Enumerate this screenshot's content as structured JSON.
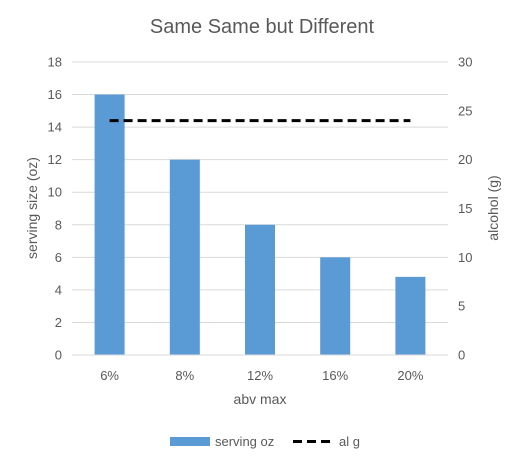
{
  "chart_data": {
    "type": "bar",
    "title": "Same Same but Different",
    "xlabel": "abv max",
    "ylabel": "serving size (oz)",
    "ylabel_right": "alcohol (g)",
    "categories": [
      "6%",
      "8%",
      "12%",
      "16%",
      "20%"
    ],
    "ylim": [
      0,
      18
    ],
    "y_ticks": [
      0,
      2,
      4,
      6,
      8,
      10,
      12,
      14,
      16,
      18
    ],
    "y2lim": [
      0,
      30
    ],
    "y2_ticks": [
      0,
      5,
      10,
      15,
      20,
      25,
      30
    ],
    "series": [
      {
        "name": "serving oz",
        "type": "bar",
        "axis": "left",
        "color": "#5B9BD5",
        "values": [
          16,
          12,
          8,
          6,
          4.8
        ]
      },
      {
        "name": "al g",
        "type": "line",
        "axis": "right",
        "style": "dashed",
        "color": "#000000",
        "values": [
          24,
          24,
          24,
          24,
          24
        ]
      }
    ],
    "grid": true,
    "legend_position": "bottom"
  }
}
